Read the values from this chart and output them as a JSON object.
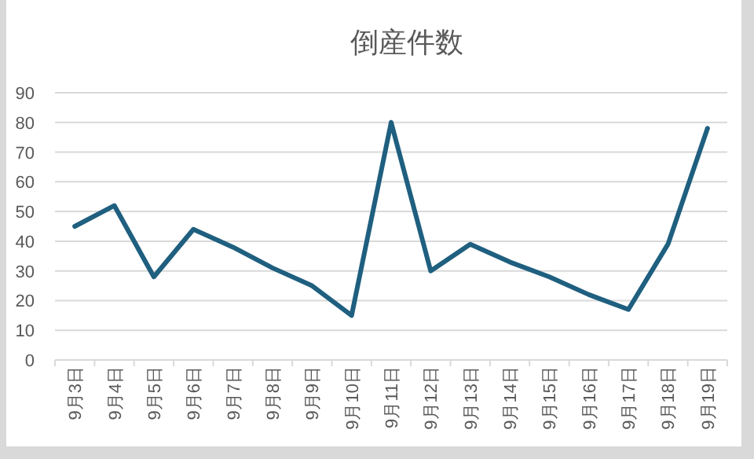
{
  "chart_data": {
    "type": "line",
    "title": "倒産件数",
    "categories": [
      "9月3日",
      "9月4日",
      "9月5日",
      "9月6日",
      "9月7日",
      "9月8日",
      "9月9日",
      "9月10日",
      "9月11日",
      "9月12日",
      "9月13日",
      "9月14日",
      "9月15日",
      "9月16日",
      "9月17日",
      "9月18日",
      "9月19日"
    ],
    "series": [
      {
        "color": "#1f5f7f",
        "values": [
          45,
          52,
          28,
          44,
          38,
          31,
          25,
          15,
          80,
          30,
          39,
          33,
          28,
          22,
          17,
          39,
          78
        ]
      }
    ],
    "ylim": [
      0,
      90
    ],
    "yticks": [
      0,
      10,
      20,
      30,
      40,
      50,
      60,
      70,
      80,
      90
    ],
    "grid": "y",
    "marker": "none",
    "line_style": "solid"
  }
}
